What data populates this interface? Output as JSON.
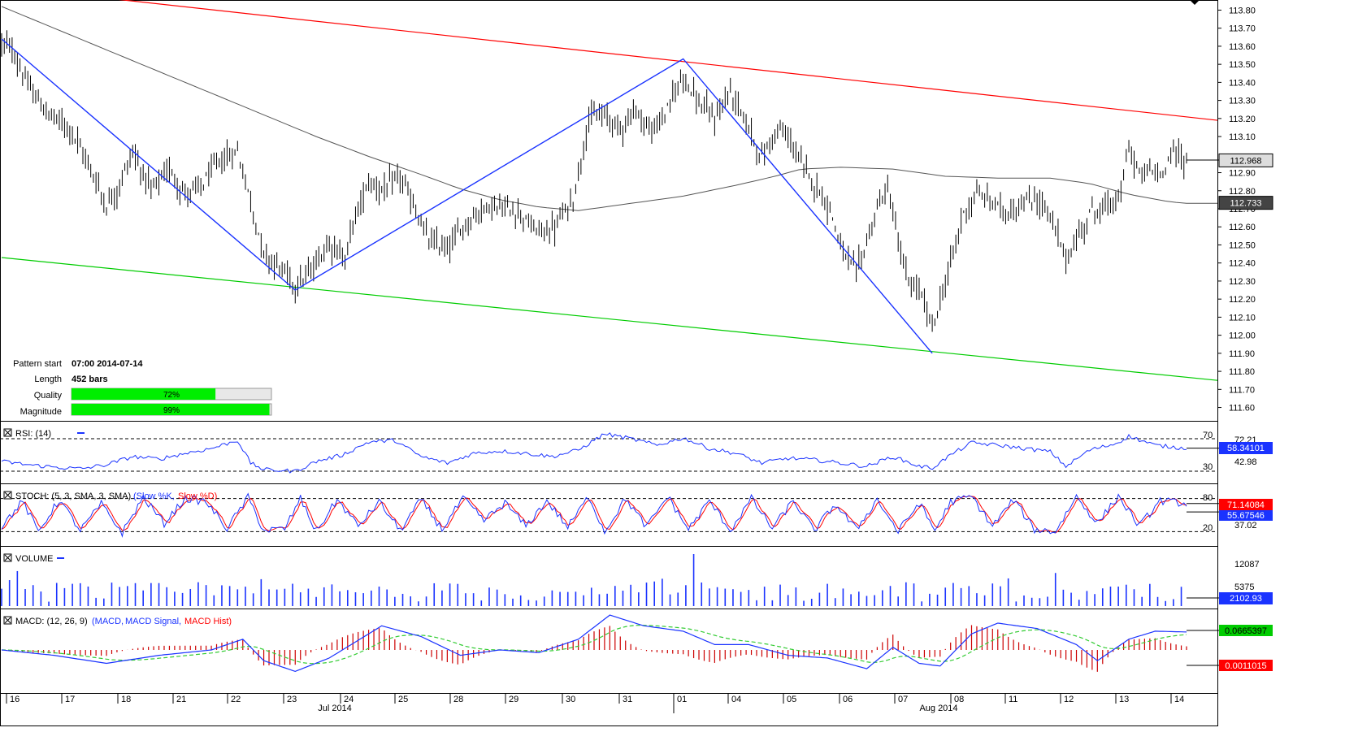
{
  "pattern_info": {
    "start_label": "Pattern start",
    "start_value": "07:00 2014-07-14",
    "length_label": "Length",
    "length_value": "452 bars",
    "quality_label": "Quality",
    "quality_value": 72,
    "quality_text": "72%",
    "magnitude_label": "Magnitude",
    "magnitude_value": 99,
    "magnitude_text": "99%"
  },
  "price_axis": {
    "ticks": [
      "113.80",
      "113.70",
      "113.60",
      "113.50",
      "113.40",
      "113.30",
      "113.20",
      "113.10",
      "112.90",
      "112.80",
      "112.70",
      "112.60",
      "112.50",
      "112.40",
      "112.30",
      "112.20",
      "112.10",
      "112.00",
      "111.90",
      "111.80",
      "111.70",
      "111.60"
    ],
    "current_price": "112.968",
    "ma_value": "112.733"
  },
  "rsi": {
    "label": "RSI: (14)",
    "levels": [
      "70",
      "30"
    ],
    "axis_values": [
      "72.21",
      "42.98"
    ],
    "current": "58.34101"
  },
  "stoch": {
    "label_main": "STOCH: (5, 3, SMA, 3, SMA)",
    "label_k": "(Slow %K,",
    "label_d": "Slow %D)",
    "levels": [
      "80",
      "20"
    ],
    "axis_values": [
      "37.02"
    ],
    "current_k": "71.14084",
    "current_d": "55.67546"
  },
  "volume": {
    "label": "VOLUME",
    "axis_values": [
      "12087",
      "5375"
    ],
    "current": "2102.93"
  },
  "macd": {
    "label_main": "MACD: (12, 26, 9)",
    "label_macd": "(MACD,",
    "label_signal": "MACD Signal,",
    "label_hist": "MACD Hist)",
    "current_macd": "0.0665397",
    "current_hist": "0.0011015"
  },
  "time_axis": {
    "days": [
      "16",
      "17",
      "18",
      "21",
      "22",
      "23",
      "24",
      "25",
      "28",
      "29",
      "30",
      "31",
      "01",
      "04",
      "05",
      "06",
      "07",
      "08",
      "11",
      "12",
      "13",
      "14"
    ],
    "months": [
      "Jul 2014",
      "Aug 2014"
    ]
  },
  "colors": {
    "upper_channel": "#ff0000",
    "lower_channel": "#00cc00",
    "pattern": "#1a33ff",
    "ma": "#555555",
    "rsi": "#1a33ff",
    "stoch_k": "#1a33ff",
    "stoch_d": "#ff0000",
    "volume": "#1a33ff",
    "macd": "#1a33ff",
    "macd_signal": "#33cc33",
    "macd_hist": "#cc0000",
    "progress": "#00ee00"
  },
  "chart_data": {
    "type": "ohlc",
    "instrument_timeframe": "hourly bars",
    "y_range": [
      111.58,
      113.82
    ],
    "upper_channel": {
      "from": [
        0,
        113.93
      ],
      "to": [
        452,
        113.19
      ]
    },
    "lower_channel": {
      "from": [
        0,
        112.43
      ],
      "to": [
        452,
        111.75
      ]
    },
    "pattern_points": [
      [
        0,
        113.64
      ],
      [
        112,
        112.25
      ],
      [
        260,
        113.53
      ],
      [
        355,
        111.9
      ]
    ],
    "pivots": [
      [
        0,
        113.62
      ],
      [
        4,
        113.58
      ],
      [
        10,
        113.38
      ],
      [
        18,
        113.22
      ],
      [
        26,
        113.15
      ],
      [
        33,
        112.95
      ],
      [
        40,
        112.72
      ],
      [
        44,
        112.8
      ],
      [
        50,
        113.02
      ],
      [
        57,
        112.8
      ],
      [
        64,
        112.92
      ],
      [
        70,
        112.78
      ],
      [
        76,
        112.82
      ],
      [
        82,
        112.95
      ],
      [
        90,
        113.02
      ],
      [
        94,
        112.8
      ],
      [
        100,
        112.45
      ],
      [
        106,
        112.38
      ],
      [
        112,
        112.28
      ],
      [
        118,
        112.35
      ],
      [
        125,
        112.52
      ],
      [
        131,
        112.42
      ],
      [
        134,
        112.62
      ],
      [
        140,
        112.85
      ],
      [
        146,
        112.8
      ],
      [
        152,
        112.88
      ],
      [
        157,
        112.72
      ],
      [
        163,
        112.52
      ],
      [
        170,
        112.48
      ],
      [
        177,
        112.62
      ],
      [
        185,
        112.72
      ],
      [
        192,
        112.7
      ],
      [
        198,
        112.68
      ],
      [
        203,
        112.58
      ],
      [
        210,
        112.58
      ],
      [
        218,
        112.75
      ],
      [
        224,
        113.2
      ],
      [
        230,
        113.22
      ],
      [
        236,
        113.15
      ],
      [
        242,
        113.25
      ],
      [
        248,
        113.12
      ],
      [
        254,
        113.25
      ],
      [
        260,
        113.45
      ],
      [
        266,
        113.28
      ],
      [
        272,
        113.2
      ],
      [
        278,
        113.35
      ],
      [
        284,
        113.18
      ],
      [
        290,
        112.98
      ],
      [
        296,
        113.15
      ],
      [
        302,
        113.05
      ],
      [
        306,
        112.92
      ],
      [
        311,
        112.82
      ],
      [
        316,
        112.7
      ],
      [
        321,
        112.45
      ],
      [
        326,
        112.35
      ],
      [
        330,
        112.52
      ],
      [
        334,
        112.7
      ],
      [
        338,
        112.82
      ],
      [
        342,
        112.52
      ],
      [
        346,
        112.28
      ],
      [
        350,
        112.25
      ],
      [
        355,
        112.05
      ],
      [
        358,
        112.18
      ],
      [
        362,
        112.4
      ],
      [
        367,
        112.68
      ],
      [
        372,
        112.78
      ],
      [
        377,
        112.75
      ],
      [
        383,
        112.68
      ],
      [
        389,
        112.72
      ],
      [
        394,
        112.75
      ],
      [
        398,
        112.72
      ],
      [
        402,
        112.58
      ],
      [
        406,
        112.42
      ],
      [
        410,
        112.52
      ],
      [
        415,
        112.68
      ],
      [
        419,
        112.7
      ],
      [
        423,
        112.72
      ],
      [
        427,
        112.78
      ],
      [
        430,
        113.05
      ],
      [
        434,
        112.88
      ],
      [
        438,
        112.92
      ],
      [
        442,
        112.88
      ],
      [
        446,
        113.02
      ],
      [
        449,
        113.0
      ],
      [
        452,
        112.97
      ]
    ],
    "moving_average": [
      [
        0,
        113.82
      ],
      [
        20,
        113.7
      ],
      [
        40,
        113.58
      ],
      [
        60,
        113.46
      ],
      [
        80,
        113.34
      ],
      [
        100,
        113.22
      ],
      [
        120,
        113.1
      ],
      [
        140,
        112.99
      ],
      [
        160,
        112.89
      ],
      [
        175,
        112.81
      ],
      [
        190,
        112.75
      ],
      [
        205,
        112.71
      ],
      [
        220,
        112.69
      ],
      [
        240,
        112.73
      ],
      [
        260,
        112.77
      ],
      [
        280,
        112.83
      ],
      [
        295,
        112.88
      ],
      [
        305,
        112.92
      ],
      [
        320,
        112.93
      ],
      [
        340,
        112.92
      ],
      [
        360,
        112.88
      ],
      [
        380,
        112.87
      ],
      [
        400,
        112.87
      ],
      [
        415,
        112.84
      ],
      [
        430,
        112.78
      ],
      [
        445,
        112.74
      ],
      [
        452,
        112.73
      ]
    ],
    "rsi_series": [
      [
        0,
        42
      ],
      [
        10,
        38
      ],
      [
        20,
        35
      ],
      [
        30,
        33
      ],
      [
        40,
        38
      ],
      [
        50,
        48
      ],
      [
        60,
        45
      ],
      [
        70,
        52
      ],
      [
        80,
        58
      ],
      [
        90,
        68
      ],
      [
        95,
        40
      ],
      [
        100,
        32
      ],
      [
        112,
        30
      ],
      [
        120,
        42
      ],
      [
        130,
        50
      ],
      [
        140,
        66
      ],
      [
        150,
        68
      ],
      [
        160,
        48
      ],
      [
        170,
        40
      ],
      [
        180,
        52
      ],
      [
        190,
        55
      ],
      [
        200,
        52
      ],
      [
        210,
        48
      ],
      [
        220,
        56
      ],
      [
        230,
        76
      ],
      [
        240,
        70
      ],
      [
        250,
        62
      ],
      [
        260,
        71
      ],
      [
        270,
        58
      ],
      [
        280,
        52
      ],
      [
        290,
        40
      ],
      [
        300,
        46
      ],
      [
        310,
        44
      ],
      [
        320,
        40
      ],
      [
        330,
        36
      ],
      [
        340,
        48
      ],
      [
        350,
        36
      ],
      [
        355,
        34
      ],
      [
        362,
        50
      ],
      [
        370,
        65
      ],
      [
        380,
        62
      ],
      [
        390,
        58
      ],
      [
        400,
        54
      ],
      [
        406,
        36
      ],
      [
        415,
        56
      ],
      [
        425,
        64
      ],
      [
        430,
        73
      ],
      [
        440,
        62
      ],
      [
        452,
        58
      ]
    ],
    "stoch_k": [
      [
        0,
        30
      ],
      [
        8,
        75
      ],
      [
        14,
        20
      ],
      [
        22,
        78
      ],
      [
        30,
        22
      ],
      [
        38,
        70
      ],
      [
        46,
        18
      ],
      [
        54,
        82
      ],
      [
        62,
        35
      ],
      [
        70,
        80
      ],
      [
        78,
        74
      ],
      [
        86,
        26
      ],
      [
        94,
        82
      ],
      [
        100,
        22
      ],
      [
        108,
        25
      ],
      [
        114,
        80
      ],
      [
        120,
        20
      ],
      [
        128,
        78
      ],
      [
        136,
        30
      ],
      [
        144,
        74
      ],
      [
        152,
        22
      ],
      [
        160,
        78
      ],
      [
        168,
        24
      ],
      [
        176,
        80
      ],
      [
        184,
        40
      ],
      [
        192,
        72
      ],
      [
        200,
        30
      ],
      [
        208,
        76
      ],
      [
        216,
        28
      ],
      [
        224,
        84
      ],
      [
        230,
        20
      ],
      [
        238,
        80
      ],
      [
        246,
        28
      ],
      [
        254,
        84
      ],
      [
        262,
        24
      ],
      [
        270,
        76
      ],
      [
        278,
        22
      ],
      [
        286,
        80
      ],
      [
        294,
        26
      ],
      [
        302,
        76
      ],
      [
        310,
        22
      ],
      [
        318,
        70
      ],
      [
        326,
        24
      ],
      [
        334,
        78
      ],
      [
        342,
        20
      ],
      [
        350,
        72
      ],
      [
        356,
        22
      ],
      [
        362,
        74
      ],
      [
        370,
        84
      ],
      [
        378,
        30
      ],
      [
        386,
        78
      ],
      [
        394,
        24
      ],
      [
        402,
        20
      ],
      [
        410,
        84
      ],
      [
        418,
        35
      ],
      [
        426,
        84
      ],
      [
        434,
        30
      ],
      [
        442,
        76
      ],
      [
        452,
        71
      ]
    ],
    "volume_series": "per-bar volume, range 0 to 12087",
    "macd_series": [
      [
        0,
        0.0
      ],
      [
        20,
        -0.02
      ],
      [
        40,
        -0.05
      ],
      [
        60,
        -0.02
      ],
      [
        80,
        0.0
      ],
      [
        92,
        0.04
      ],
      [
        100,
        -0.04
      ],
      [
        112,
        -0.08
      ],
      [
        125,
        -0.03
      ],
      [
        135,
        0.03
      ],
      [
        145,
        0.09
      ],
      [
        160,
        0.05
      ],
      [
        175,
        -0.02
      ],
      [
        190,
        0.0
      ],
      [
        205,
        -0.01
      ],
      [
        220,
        0.04
      ],
      [
        232,
        0.13
      ],
      [
        245,
        0.09
      ],
      [
        260,
        0.07
      ],
      [
        272,
        0.02
      ],
      [
        285,
        0.02
      ],
      [
        300,
        -0.02
      ],
      [
        315,
        -0.03
      ],
      [
        330,
        -0.07
      ],
      [
        340,
        0.01
      ],
      [
        350,
        -0.05
      ],
      [
        358,
        -0.06
      ],
      [
        370,
        0.06
      ],
      [
        380,
        0.1
      ],
      [
        395,
        0.08
      ],
      [
        410,
        0.02
      ],
      [
        418,
        -0.04
      ],
      [
        430,
        0.04
      ],
      [
        440,
        0.07
      ],
      [
        452,
        0.067
      ]
    ]
  }
}
